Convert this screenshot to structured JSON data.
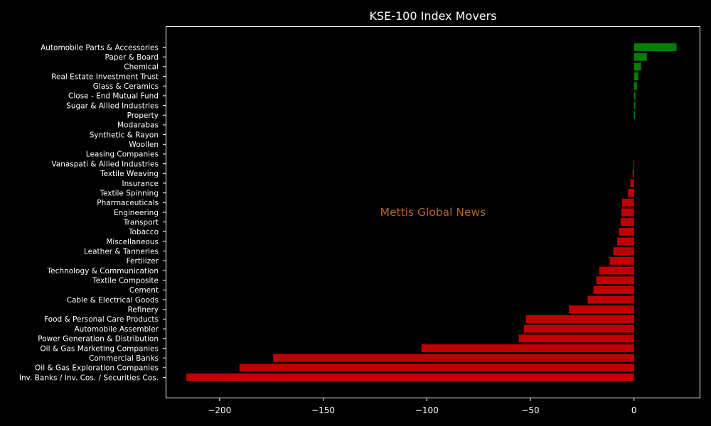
{
  "chart_data": {
    "type": "bar",
    "orientation": "horizontal",
    "title": "KSE-100 Index Movers",
    "watermark": "Mettis Global News",
    "xlabel": "",
    "ylabel": "",
    "xlim": [
      -226,
      32
    ],
    "grid": false,
    "legend": "none",
    "colors": {
      "positive": "#008000",
      "negative": "#c00000",
      "background": "#000000",
      "text": "#ffffff",
      "watermark": "#b5632a"
    },
    "x_ticks": [
      {
        "value": -200,
        "label": "−200"
      },
      {
        "value": -150,
        "label": "−150"
      },
      {
        "value": -100,
        "label": "−100"
      },
      {
        "value": -50,
        "label": "−50"
      },
      {
        "value": 0,
        "label": "0"
      }
    ],
    "categories": [
      "Automobile Parts & Accessories",
      "Paper & Board",
      "Chemical",
      "Real Estate Investment Trust",
      "Glass & Ceramics",
      "Close - End Mutual Fund",
      "Sugar & Allied Industries",
      "Property",
      "Modarabas",
      "Synthetic & Rayon",
      "Woollen",
      "Leasing Companies",
      "Vanaspati & Allied Industries",
      "Textile Weaving",
      "Insurance",
      "Textile Spinning",
      "Pharmaceuticals",
      "Engineering",
      "Transport",
      "Tobacco",
      "Miscellaneous",
      "Leather & Tanneries",
      "Fertilizer",
      "Technology & Communication",
      "Textile Composite",
      "Cement",
      "Cable & Electrical Goods",
      "Refinery",
      "Food & Personal Care Products",
      "Automobile Assembler",
      "Power Generation & Distribution",
      "Oil & Gas Marketing Companies",
      "Commercial Banks",
      "Oil & Gas Exploration Companies",
      "Inv. Banks / Inv. Cos. / Securities Cos."
    ],
    "values": [
      20.5,
      6.2,
      3.4,
      2.1,
      1.4,
      0.7,
      0.6,
      0.5,
      0,
      0,
      0,
      0,
      -0.4,
      -0.7,
      -1.8,
      -3.0,
      -5.8,
      -6.1,
      -6.5,
      -7.3,
      -8.1,
      -10.0,
      -11.8,
      -16.8,
      -18.2,
      -19.6,
      -22.4,
      -31.4,
      -52.2,
      -53.1,
      -55.6,
      -102.6,
      -174.1,
      -190.4,
      -216.0
    ]
  }
}
